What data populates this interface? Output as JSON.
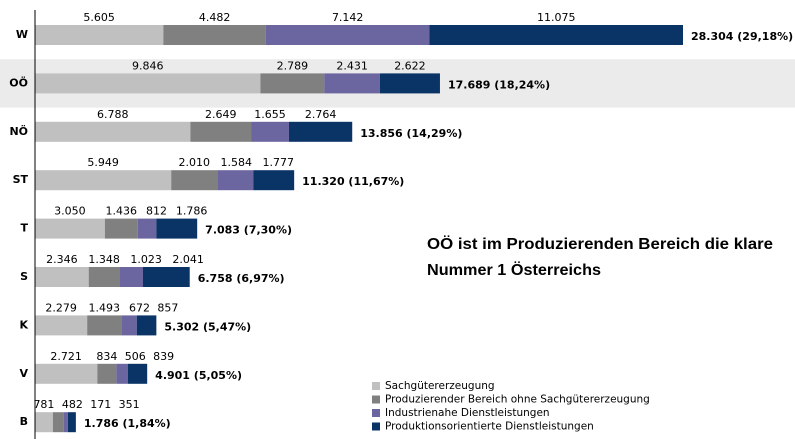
{
  "chart_data": {
    "type": "stacked-bar-horizontal",
    "categories": [
      "W",
      "OÖ",
      "NÖ",
      "ST",
      "T",
      "S",
      "K",
      "V",
      "B"
    ],
    "highlight": "OÖ",
    "series": [
      {
        "name": "Sachgütererzeugung",
        "color": "#c0c0c0",
        "values": [
          5605,
          9846,
          6788,
          5949,
          3050,
          2346,
          2279,
          2721,
          781
        ],
        "value_labels": [
          "5.605",
          "9.846",
          "6.788",
          "5.949",
          "3.050",
          "2.346",
          "2.279",
          "2.721",
          "781"
        ]
      },
      {
        "name": "Produzierender Bereich ohne Sachgütererzeugung",
        "color": "#808080",
        "values": [
          4482,
          2789,
          2649,
          2010,
          1436,
          1348,
          1493,
          834,
          482
        ],
        "value_labels": [
          "4.482",
          "2.789",
          "2.649",
          "2.010",
          "1.436",
          "1.348",
          "1.493",
          "834",
          "482"
        ]
      },
      {
        "name": "Industrienahe Dienstleistungen",
        "color": "#6b66a0",
        "values": [
          7142,
          2431,
          1655,
          1584,
          812,
          1023,
          672,
          506,
          171
        ],
        "value_labels": [
          "7.142",
          "2.431",
          "1.655",
          "1.584",
          "812",
          "1.023",
          "672",
          "506",
          "171"
        ]
      },
      {
        "name": "Produktionsorientierte Dienstleistungen",
        "color": "#0a3366",
        "values": [
          11075,
          2622,
          2764,
          1777,
          1786,
          2041,
          857,
          839,
          351
        ],
        "value_labels": [
          "11.075",
          "2.622",
          "2.764",
          "1.777",
          "1.786",
          "2.041",
          "857",
          "839",
          "351"
        ]
      }
    ],
    "total_labels": [
      "28.304 (29,18%)",
      "17.689 (18,24%)",
      "13.856 (14,29%)",
      "11.320 (11,67%)",
      "7.083 (7,30%)",
      "6.758 (6,97%)",
      "5.302 (5,47%)",
      "4.901 (5,05%)",
      "1.786 (1,84%)"
    ],
    "annotation": [
      "OÖ ist im Produzierenden Bereich die klare",
      "Nummer 1 Österreichs"
    ]
  }
}
